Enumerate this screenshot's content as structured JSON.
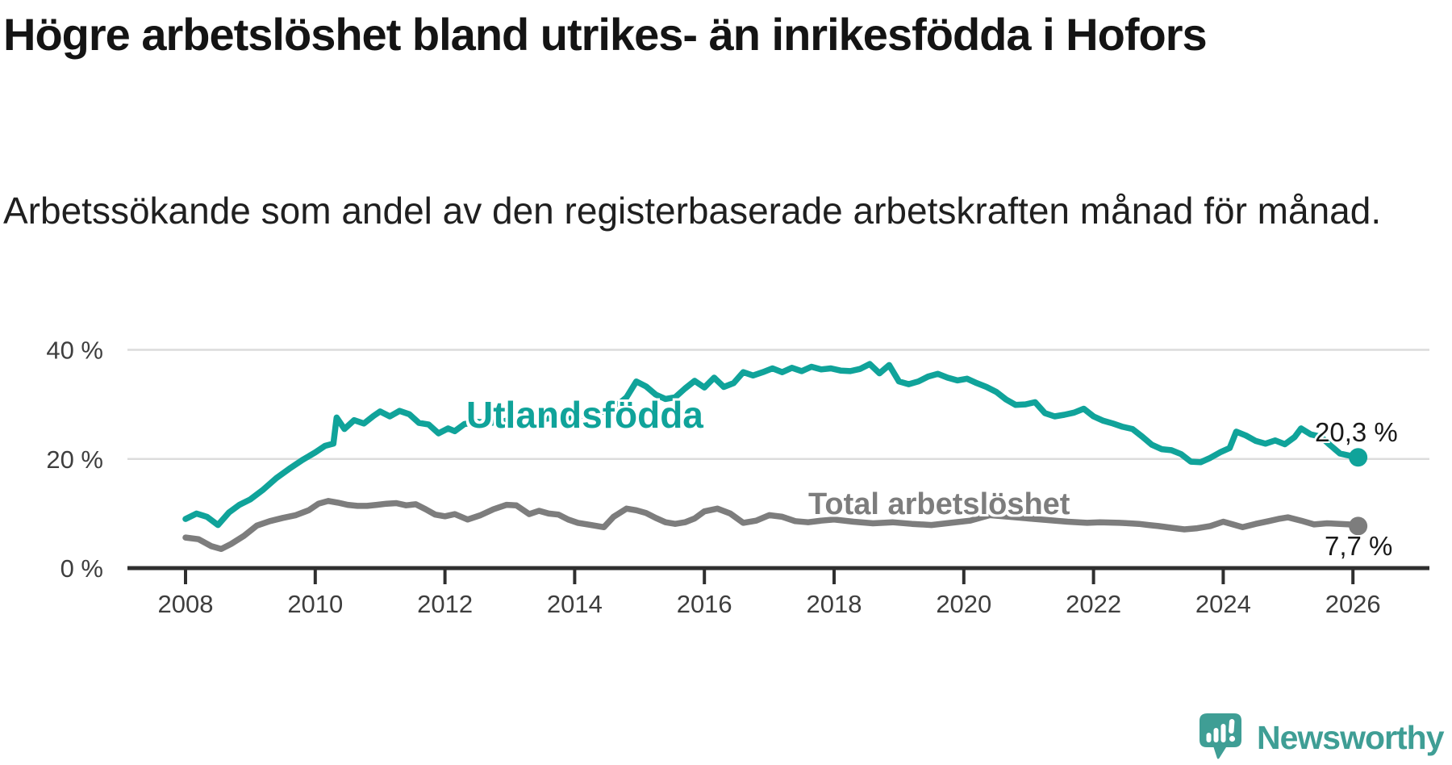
{
  "header": {
    "title": "Högre arbetslöshet bland utrikes- än inrikesfödda i Hofors",
    "subtitle": "Arbetssökande som andel av den registerbaserade arbetskraften månad för månad."
  },
  "chart_data": {
    "type": "line",
    "title": "Högre arbetslöshet bland utrikes- än inrikesfödda i Hofors",
    "xlabel": "",
    "ylabel": "Arbetssökande som andel av den registerbaserade arbetskraften",
    "grid": "horizontal",
    "legend_position": "inline-labels",
    "x_axis": {
      "ticks": [
        2008,
        2010,
        2012,
        2014,
        2016,
        2018,
        2020,
        2022,
        2024,
        2026
      ],
      "range": [
        2007.1,
        2027.2
      ]
    },
    "y_axis": {
      "ticks": [
        {
          "value": 0,
          "label": "0 %"
        },
        {
          "value": 20,
          "label": "20 %"
        },
        {
          "value": 40,
          "label": "40 %"
        }
      ],
      "range": [
        0,
        42
      ]
    },
    "colors": {
      "utlandsfodda": "#10a39a",
      "total": "#7d7d7d",
      "axis": "#2f2f2f",
      "gridline": "#dcdcdc",
      "tick_label": "#3e3e3e"
    },
    "series": [
      {
        "name": "Utlandsfödda",
        "color": "#10a39a",
        "end_label": "20,3 %",
        "end_value": 20.3,
        "points": [
          [
            2008.0,
            9.0
          ],
          [
            2008.17,
            10.0
          ],
          [
            2008.33,
            9.4
          ],
          [
            2008.5,
            7.9
          ],
          [
            2008.67,
            10.2
          ],
          [
            2008.83,
            11.6
          ],
          [
            2009.0,
            12.6
          ],
          [
            2009.2,
            14.4
          ],
          [
            2009.4,
            16.5
          ],
          [
            2009.6,
            18.2
          ],
          [
            2009.8,
            19.8
          ],
          [
            2010.0,
            21.2
          ],
          [
            2010.15,
            22.4
          ],
          [
            2010.28,
            22.8
          ],
          [
            2010.33,
            27.6
          ],
          [
            2010.45,
            25.5
          ],
          [
            2010.6,
            27.1
          ],
          [
            2010.75,
            26.5
          ],
          [
            2010.9,
            27.9
          ],
          [
            2011.0,
            28.7
          ],
          [
            2011.15,
            27.8
          ],
          [
            2011.3,
            28.8
          ],
          [
            2011.45,
            28.2
          ],
          [
            2011.6,
            26.6
          ],
          [
            2011.75,
            26.3
          ],
          [
            2011.9,
            24.7
          ],
          [
            2012.05,
            25.6
          ],
          [
            2012.15,
            25.1
          ],
          [
            2012.3,
            26.4
          ],
          [
            2012.5,
            26.8
          ],
          [
            2012.7,
            26.6
          ],
          [
            2012.9,
            26.9
          ],
          [
            2013.1,
            27.4
          ],
          [
            2013.3,
            27.8
          ],
          [
            2013.5,
            27.2
          ],
          [
            2013.7,
            27.7
          ],
          [
            2013.9,
            27.3
          ],
          [
            2014.1,
            27.9
          ],
          [
            2014.3,
            28.3
          ],
          [
            2014.5,
            28.8
          ],
          [
            2014.65,
            29.8
          ],
          [
            2014.8,
            31.3
          ],
          [
            2014.95,
            34.2
          ],
          [
            2015.1,
            33.3
          ],
          [
            2015.25,
            31.8
          ],
          [
            2015.4,
            31.0
          ],
          [
            2015.55,
            31.3
          ],
          [
            2015.7,
            32.9
          ],
          [
            2015.85,
            34.3
          ],
          [
            2016.0,
            33.1
          ],
          [
            2016.15,
            34.9
          ],
          [
            2016.3,
            33.2
          ],
          [
            2016.45,
            33.9
          ],
          [
            2016.6,
            35.9
          ],
          [
            2016.75,
            35.3
          ],
          [
            2016.9,
            35.9
          ],
          [
            2017.05,
            36.6
          ],
          [
            2017.2,
            35.9
          ],
          [
            2017.35,
            36.7
          ],
          [
            2017.5,
            36.1
          ],
          [
            2017.65,
            36.9
          ],
          [
            2017.8,
            36.4
          ],
          [
            2017.95,
            36.6
          ],
          [
            2018.1,
            36.2
          ],
          [
            2018.25,
            36.1
          ],
          [
            2018.4,
            36.5
          ],
          [
            2018.55,
            37.4
          ],
          [
            2018.7,
            35.7
          ],
          [
            2018.85,
            37.2
          ],
          [
            2019.0,
            34.2
          ],
          [
            2019.15,
            33.7
          ],
          [
            2019.3,
            34.2
          ],
          [
            2019.45,
            35.1
          ],
          [
            2019.6,
            35.6
          ],
          [
            2019.75,
            34.9
          ],
          [
            2019.9,
            34.4
          ],
          [
            2020.05,
            34.7
          ],
          [
            2020.2,
            33.9
          ],
          [
            2020.35,
            33.2
          ],
          [
            2020.5,
            32.3
          ],
          [
            2020.65,
            30.9
          ],
          [
            2020.8,
            29.9
          ],
          [
            2020.95,
            30.0
          ],
          [
            2021.1,
            30.4
          ],
          [
            2021.25,
            28.4
          ],
          [
            2021.4,
            27.8
          ],
          [
            2021.55,
            28.1
          ],
          [
            2021.7,
            28.5
          ],
          [
            2021.85,
            29.2
          ],
          [
            2022.0,
            27.8
          ],
          [
            2022.15,
            27.0
          ],
          [
            2022.3,
            26.5
          ],
          [
            2022.45,
            25.9
          ],
          [
            2022.6,
            25.5
          ],
          [
            2022.75,
            24.1
          ],
          [
            2022.9,
            22.6
          ],
          [
            2023.05,
            21.8
          ],
          [
            2023.2,
            21.6
          ],
          [
            2023.35,
            20.9
          ],
          [
            2023.5,
            19.5
          ],
          [
            2023.65,
            19.4
          ],
          [
            2023.8,
            20.2
          ],
          [
            2023.95,
            21.2
          ],
          [
            2024.1,
            22.0
          ],
          [
            2024.2,
            25.0
          ],
          [
            2024.35,
            24.3
          ],
          [
            2024.5,
            23.3
          ],
          [
            2024.65,
            22.8
          ],
          [
            2024.8,
            23.4
          ],
          [
            2024.95,
            22.7
          ],
          [
            2025.1,
            24.0
          ],
          [
            2025.2,
            25.6
          ],
          [
            2025.35,
            24.5
          ],
          [
            2025.5,
            24.1
          ],
          [
            2025.65,
            22.5
          ],
          [
            2025.8,
            21.0
          ],
          [
            2025.95,
            20.6
          ],
          [
            2026.08,
            20.3
          ]
        ]
      },
      {
        "name": "Total arbetslöshet",
        "color": "#7d7d7d",
        "end_label": "7,7 %",
        "end_value": 7.7,
        "points": [
          [
            2008.0,
            5.6
          ],
          [
            2008.2,
            5.3
          ],
          [
            2008.4,
            4.0
          ],
          [
            2008.55,
            3.5
          ],
          [
            2008.7,
            4.4
          ],
          [
            2008.9,
            5.9
          ],
          [
            2009.1,
            7.8
          ],
          [
            2009.3,
            8.6
          ],
          [
            2009.5,
            9.2
          ],
          [
            2009.7,
            9.7
          ],
          [
            2009.9,
            10.6
          ],
          [
            2010.05,
            11.8
          ],
          [
            2010.2,
            12.3
          ],
          [
            2010.35,
            12.0
          ],
          [
            2010.5,
            11.6
          ],
          [
            2010.65,
            11.4
          ],
          [
            2010.8,
            11.4
          ],
          [
            2010.95,
            11.6
          ],
          [
            2011.1,
            11.8
          ],
          [
            2011.25,
            11.9
          ],
          [
            2011.4,
            11.5
          ],
          [
            2011.55,
            11.7
          ],
          [
            2011.7,
            10.8
          ],
          [
            2011.85,
            9.8
          ],
          [
            2012.0,
            9.5
          ],
          [
            2012.15,
            9.9
          ],
          [
            2012.35,
            8.9
          ],
          [
            2012.55,
            9.7
          ],
          [
            2012.75,
            10.8
          ],
          [
            2012.95,
            11.6
          ],
          [
            2013.1,
            11.5
          ],
          [
            2013.3,
            9.9
          ],
          [
            2013.45,
            10.5
          ],
          [
            2013.6,
            10.0
          ],
          [
            2013.75,
            9.8
          ],
          [
            2013.9,
            8.9
          ],
          [
            2014.05,
            8.3
          ],
          [
            2014.25,
            7.9
          ],
          [
            2014.45,
            7.5
          ],
          [
            2014.6,
            9.4
          ],
          [
            2014.8,
            10.9
          ],
          [
            2014.95,
            10.6
          ],
          [
            2015.1,
            10.1
          ],
          [
            2015.25,
            9.2
          ],
          [
            2015.4,
            8.4
          ],
          [
            2015.55,
            8.1
          ],
          [
            2015.7,
            8.4
          ],
          [
            2015.85,
            9.1
          ],
          [
            2016.0,
            10.4
          ],
          [
            2016.2,
            10.9
          ],
          [
            2016.4,
            10.0
          ],
          [
            2016.6,
            8.3
          ],
          [
            2016.8,
            8.7
          ],
          [
            2017.0,
            9.7
          ],
          [
            2017.2,
            9.4
          ],
          [
            2017.4,
            8.6
          ],
          [
            2017.6,
            8.4
          ],
          [
            2017.8,
            8.7
          ],
          [
            2018.0,
            8.9
          ],
          [
            2018.3,
            8.5
          ],
          [
            2018.6,
            8.2
          ],
          [
            2018.9,
            8.4
          ],
          [
            2019.2,
            8.1
          ],
          [
            2019.5,
            7.9
          ],
          [
            2019.8,
            8.3
          ],
          [
            2020.1,
            8.7
          ],
          [
            2020.4,
            9.7
          ],
          [
            2020.7,
            9.4
          ],
          [
            2021.0,
            9.1
          ],
          [
            2021.3,
            8.8
          ],
          [
            2021.6,
            8.5
          ],
          [
            2021.9,
            8.3
          ],
          [
            2022.1,
            8.4
          ],
          [
            2022.4,
            8.3
          ],
          [
            2022.55,
            8.2
          ],
          [
            2022.7,
            8.1
          ],
          [
            2022.85,
            7.9
          ],
          [
            2023.0,
            7.7
          ],
          [
            2023.2,
            7.4
          ],
          [
            2023.4,
            7.1
          ],
          [
            2023.6,
            7.3
          ],
          [
            2023.8,
            7.7
          ],
          [
            2024.0,
            8.5
          ],
          [
            2024.15,
            8.0
          ],
          [
            2024.3,
            7.5
          ],
          [
            2024.5,
            8.1
          ],
          [
            2024.7,
            8.6
          ],
          [
            2024.85,
            9.0
          ],
          [
            2025.0,
            9.3
          ],
          [
            2025.2,
            8.7
          ],
          [
            2025.4,
            8.0
          ],
          [
            2025.6,
            8.2
          ],
          [
            2025.8,
            8.1
          ],
          [
            2025.95,
            8.0
          ],
          [
            2026.08,
            7.7
          ]
        ]
      }
    ]
  },
  "footer": {
    "brand_name": "Newsworthy",
    "brand_color": "#3f9e95"
  }
}
